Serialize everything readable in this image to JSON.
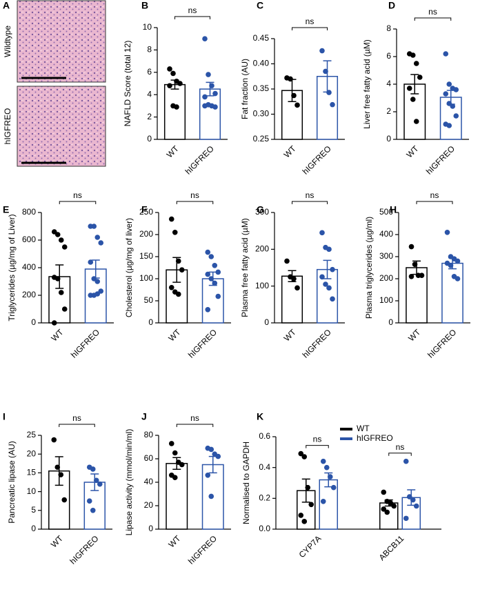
{
  "panel_a": {
    "label": "A",
    "rows": [
      "Wildtype",
      "hIGFREO"
    ]
  },
  "chart_data": [
    {
      "type": "bar",
      "label": "B",
      "ylabel": "NAFLD Score (total 12)",
      "categories": [
        "WT",
        "hIGFREO"
      ],
      "values": [
        4.9,
        4.5
      ],
      "errors": [
        0.4,
        0.6
      ],
      "points": [
        [
          6.3,
          5.9,
          5.2,
          5.0,
          4.8,
          3.0,
          2.9
        ],
        [
          9.0,
          5.8,
          4.8,
          4.1,
          3.8,
          3.1,
          3.0,
          2.9,
          3.0
        ]
      ],
      "colors": [
        "#000000",
        "#2b54a8"
      ],
      "annotation": "ns",
      "ylim": [
        0,
        10
      ],
      "yticks": [
        0,
        2,
        4,
        6,
        8,
        10
      ]
    },
    {
      "type": "bar",
      "label": "C",
      "ylabel": "Fat fraction (AU)",
      "categories": [
        "WT",
        "hIGFREO"
      ],
      "values": [
        0.347,
        0.375
      ],
      "errors": [
        0.022,
        0.031
      ],
      "points": [
        [
          0.372,
          0.37,
          0.337,
          0.318
        ],
        [
          0.426,
          0.385,
          0.343,
          0.319
        ]
      ],
      "colors": [
        "#000000",
        "#2b54a8"
      ],
      "annotation": "ns",
      "ylim": [
        0.25,
        0.45
      ],
      "yticks": [
        0.25,
        {
          "value": 0.3,
          "label": "0.30"
        },
        0.35,
        {
          "value": 0.4,
          "label": "0.40"
        },
        0.45
      ]
    },
    {
      "type": "bar",
      "label": "D",
      "ylabel": "Liver free fatty acid (µM)",
      "categories": [
        "WT",
        "hIGFREO"
      ],
      "values": [
        4.0,
        3.05
      ],
      "errors": [
        0.7,
        0.5
      ],
      "points": [
        [
          6.2,
          6.1,
          5.5,
          4.5,
          3.7,
          2.9,
          1.3
        ],
        [
          6.2,
          4.0,
          3.7,
          3.6,
          3.3,
          2.6,
          2.4,
          1.7,
          1.1,
          1.0
        ]
      ],
      "colors": [
        "#000000",
        "#2b54a8"
      ],
      "annotation": "ns",
      "ylim": [
        0,
        8
      ],
      "yticks": [
        0,
        2,
        4,
        6,
        8
      ]
    },
    {
      "type": "bar",
      "label": "E",
      "ylabel": "Triglycerides (µg/mg of Liver)",
      "categories": [
        "WT",
        "hIGFREO"
      ],
      "values": [
        335,
        390
      ],
      "errors": [
        85,
        65
      ],
      "points": [
        [
          660,
          640,
          600,
          550,
          330,
          320,
          220,
          100,
          0
        ],
        [
          700,
          700,
          620,
          580,
          440,
          320,
          300,
          230,
          200,
          200,
          210
        ]
      ],
      "colors": [
        "#000000",
        "#2b54a8"
      ],
      "annotation": "ns",
      "ylim": [
        0,
        800
      ],
      "yticks": [
        0,
        200,
        400,
        600,
        800
      ]
    },
    {
      "type": "bar",
      "label": "F",
      "ylabel": "Cholesterol (µg/mg of liver)",
      "categories": [
        "WT",
        "hIGFREO"
      ],
      "values": [
        120,
        100
      ],
      "errors": [
        28,
        15
      ],
      "points": [
        [
          235,
          205,
          140,
          120,
          80,
          70,
          65
        ],
        [
          160,
          150,
          130,
          115,
          110,
          100,
          90,
          60,
          30
        ]
      ],
      "colors": [
        "#000000",
        "#2b54a8"
      ],
      "annotation": "ns",
      "ylim": [
        0,
        250
      ],
      "yticks": [
        0,
        50,
        100,
        150,
        200,
        250
      ]
    },
    {
      "type": "bar",
      "label": "G",
      "ylabel": "Plasma free fatty acid  (µM)",
      "categories": [
        "WT",
        "hIGFREO"
      ],
      "values": [
        127,
        145
      ],
      "errors": [
        15,
        25
      ],
      "points": [
        [
          168,
          125,
          120,
          95
        ],
        [
          245,
          205,
          200,
          145,
          125,
          105,
          95,
          65
        ]
      ],
      "colors": [
        "#000000",
        "#2b54a8"
      ],
      "annotation": "ns",
      "ylim": [
        0,
        300
      ],
      "yticks": [
        0,
        100,
        200,
        300
      ]
    },
    {
      "type": "bar",
      "label": "H",
      "ylabel": "Plasma triglycerides (µg/ml)",
      "categories": [
        "WT",
        "hIGFREO"
      ],
      "values": [
        250,
        270
      ],
      "errors": [
        30,
        25
      ],
      "points": [
        [
          345,
          265,
          215,
          215,
          210
        ],
        [
          410,
          300,
          290,
          280,
          270,
          260,
          210,
          200
        ]
      ],
      "colors": [
        "#000000",
        "#2b54a8"
      ],
      "annotation": "ns",
      "ylim": [
        0,
        500
      ],
      "yticks": [
        0,
        100,
        200,
        300,
        400,
        500
      ]
    },
    {
      "type": "bar",
      "label": "I",
      "ylabel": "Pancreatic lipase (AU)",
      "categories": [
        "WT",
        "hIGFREO"
      ],
      "values": [
        15.5,
        12.5
      ],
      "errors": [
        3.8,
        2.2
      ],
      "points": [
        [
          23.8,
          16.5,
          14.5,
          7.8
        ],
        [
          16.5,
          16,
          13,
          12,
          7.5,
          5
        ]
      ],
      "colors": [
        "#000000",
        "#2b54a8"
      ],
      "annotation": "ns",
      "ylim": [
        0,
        25
      ],
      "yticks": [
        0,
        5,
        10,
        15,
        20,
        25
      ]
    },
    {
      "type": "bar",
      "label": "J",
      "ylabel": "Lipase activity (mmol/min/ml)",
      "categories": [
        "WT",
        "hIGFREO"
      ],
      "values": [
        56,
        55
      ],
      "errors": [
        5,
        7
      ],
      "points": [
        [
          73,
          65,
          57,
          55,
          46,
          44
        ],
        [
          69,
          68,
          64,
          62,
          46,
          28
        ]
      ],
      "colors": [
        "#000000",
        "#2b54a8"
      ],
      "annotation": "ns",
      "ylim": [
        0,
        80
      ],
      "yticks": [
        0,
        20,
        40,
        60,
        80
      ]
    },
    {
      "type": "bar",
      "label": "K",
      "ylabel": "Normalised to GAPDH",
      "categories": [
        "CYP7A",
        "ABCB11"
      ],
      "series": [
        {
          "name": "WT",
          "color": "#000000",
          "values": [
            0.25,
            0.17
          ],
          "errors": [
            0.075,
            0.02
          ],
          "points": [
            [
              0.49,
              0.47,
              0.27,
              0.16,
              0.09,
              0.05
            ],
            [
              0.24,
              0.18,
              0.17,
              0.15,
              0.13,
              0.11
            ]
          ]
        },
        {
          "name": "hIGFREO",
          "color": "#2b54a8",
          "values": [
            0.32,
            0.205
          ],
          "errors": [
            0.045,
            0.05
          ],
          "points": [
            [
              0.44,
              0.4,
              0.34,
              0.27,
              0.18
            ],
            [
              0.44,
              0.21,
              0.19,
              0.15,
              0.07
            ]
          ]
        }
      ],
      "annotations": [
        "ns",
        "ns"
      ],
      "ylim": [
        0,
        0.6
      ],
      "yticks": [
        {
          "value": 0,
          "label": "0.0"
        },
        0.2,
        0.4,
        0.6
      ]
    }
  ]
}
